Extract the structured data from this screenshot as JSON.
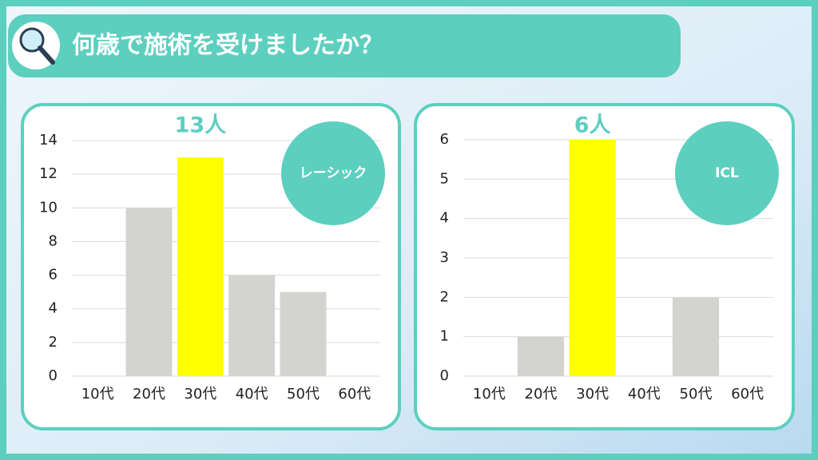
{
  "header": {
    "title": "何歳で施術を受けましたか？"
  },
  "chart_data": [
    {
      "type": "bar",
      "annotation": "13人",
      "badge": "レーシック",
      "categories": [
        "10代",
        "20代",
        "30代",
        "40代",
        "50代",
        "60代"
      ],
      "values": [
        0,
        10,
        13,
        6,
        5,
        0
      ],
      "colors": [
        "#d3d3cf",
        "#d3d3cf",
        "#ffff00",
        "#d3d3cf",
        "#d3d3cf",
        "#d3d3cf"
      ],
      "ylim": [
        0,
        14
      ],
      "yticks": [
        0,
        2,
        4,
        6,
        8,
        10,
        12,
        14
      ],
      "grid": true
    },
    {
      "type": "bar",
      "annotation": "6人",
      "badge": "ICL",
      "categories": [
        "10代",
        "20代",
        "30代",
        "40代",
        "50代",
        "60代"
      ],
      "values": [
        0,
        1,
        6,
        0,
        2,
        0
      ],
      "colors": [
        "#d3d3cf",
        "#d3d3cf",
        "#ffff00",
        "#d3d3cf",
        "#d3d3cf",
        "#d3d3cf"
      ],
      "ylim": [
        0,
        6
      ],
      "yticks": [
        0,
        1,
        2,
        3,
        4,
        5,
        6
      ],
      "grid": true
    }
  ]
}
